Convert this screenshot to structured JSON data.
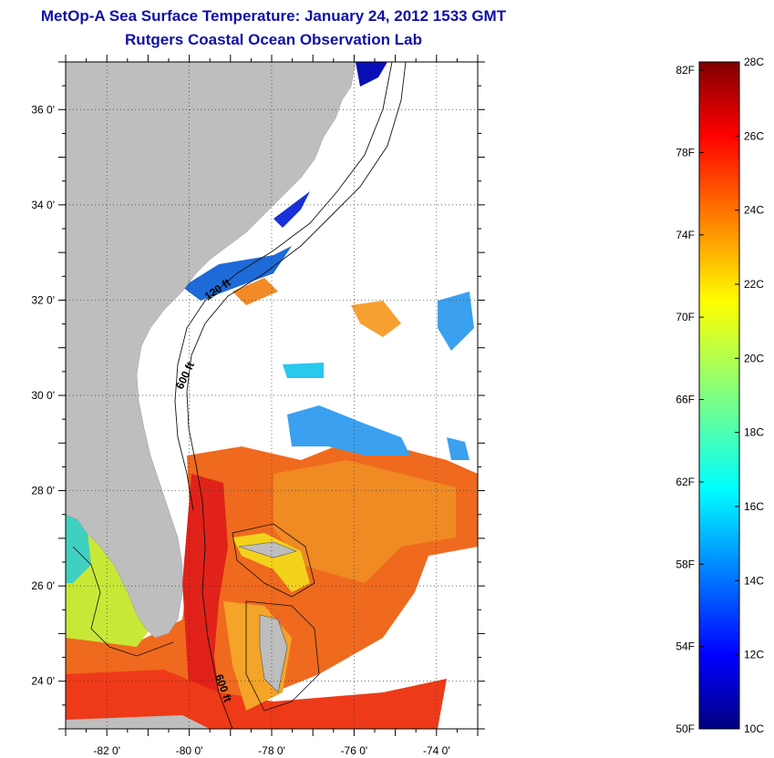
{
  "header": {
    "title": "MetOp-A Sea Surface Temperature:  January 24, 2012 1533 GMT",
    "subtitle": "Rutgers Coastal Ocean Observation Lab"
  },
  "map": {
    "lon_range": [
      -83,
      -73
    ],
    "lat_range": [
      23,
      37
    ],
    "lon_ticks": [
      {
        "value": -82,
        "label": "-82 0'"
      },
      {
        "value": -80,
        "label": "-80 0'"
      },
      {
        "value": -78,
        "label": "-78 0'"
      },
      {
        "value": -76,
        "label": "-76 0'"
      },
      {
        "value": -74,
        "label": "-74 0'"
      }
    ],
    "lat_ticks": [
      {
        "value": 36,
        "label": "36 0'"
      },
      {
        "value": 34,
        "label": "34 0'"
      },
      {
        "value": 32,
        "label": "32 0'"
      },
      {
        "value": 30,
        "label": "30 0'"
      },
      {
        "value": 28,
        "label": "28 0'"
      },
      {
        "value": 26,
        "label": "26 0'"
      },
      {
        "value": 24,
        "label": "24 0'"
      }
    ],
    "contour_labels": [
      "120 ft",
      "600 ft",
      "600 ft"
    ],
    "land_color": "#bebebe",
    "grid": "dotted"
  },
  "colorbar": {
    "fahrenheit_labels": [
      "82F",
      "78F",
      "74F",
      "70F",
      "66F",
      "62F",
      "58F",
      "54F",
      "50F"
    ],
    "celsius_labels": [
      "28C",
      "26C",
      "24C",
      "22C",
      "20C",
      "18C",
      "16C",
      "14C",
      "12C",
      "10C"
    ],
    "range_c": [
      10,
      28
    ],
    "colormap": "jet"
  }
}
